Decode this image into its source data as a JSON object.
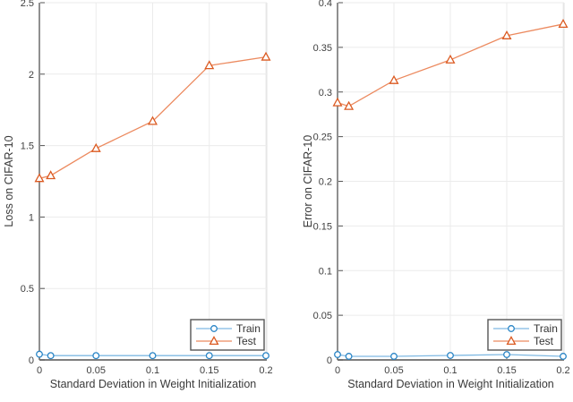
{
  "figure": {
    "background": "#ffffff"
  },
  "palette": {
    "grid": "#ebebeb",
    "box_edge": "#e2e2e2",
    "axis": "#6b6b6b",
    "tick": "#555555",
    "tick_text": "#3f3f3f",
    "label_text": "#3a3a3a",
    "legend_border": "#565656",
    "legend_bg": "#ffffff",
    "legend_text": "#333333"
  },
  "chart_data": [
    {
      "id": "loss",
      "type": "line",
      "title": "",
      "xlabel": "Standard Deviation in Weight Initialization",
      "ylabel": "Loss on CIFAR-10",
      "x": [
        0,
        0.01,
        0.05,
        0.1,
        0.15,
        0.2
      ],
      "xlim": [
        0,
        0.2
      ],
      "ylim": [
        0,
        2.5
      ],
      "xticks": [
        0,
        0.05,
        0.1,
        0.15,
        0.2
      ],
      "xtick_labels": [
        "0",
        "0.05",
        "0.1",
        "0.15",
        "0.2"
      ],
      "yticks": [
        0,
        0.5,
        1,
        1.5,
        2,
        2.5
      ],
      "ytick_labels": [
        "0",
        "0.5",
        "1",
        "1.5",
        "2",
        "2.5"
      ],
      "grid": true,
      "legend_position": "southeast",
      "legend_entries": [
        "Train",
        "Test"
      ],
      "series": [
        {
          "name": "Train",
          "marker": "circle",
          "line_color": "#7fb9e3",
          "marker_color": "#2a85c6",
          "values": [
            0.04,
            0.03,
            0.03,
            0.03,
            0.03,
            0.03
          ]
        },
        {
          "name": "Test",
          "marker": "triangle",
          "line_color": "#ec8a5f",
          "marker_color": "#db5a21",
          "values": [
            1.27,
            1.29,
            1.48,
            1.67,
            2.06,
            2.12
          ]
        }
      ]
    },
    {
      "id": "error",
      "type": "line",
      "title": "",
      "xlabel": "Standard Deviation in Weight Initialization",
      "ylabel": "Error on CIFAR-10",
      "x": [
        0,
        0.01,
        0.05,
        0.1,
        0.15,
        0.2
      ],
      "xlim": [
        0,
        0.2
      ],
      "ylim": [
        0,
        0.4
      ],
      "xticks": [
        0,
        0.05,
        0.1,
        0.15,
        0.2
      ],
      "xtick_labels": [
        "0",
        "0.05",
        "0.1",
        "0.15",
        "0.2"
      ],
      "yticks": [
        0,
        0.05,
        0.1,
        0.15,
        0.2,
        0.25,
        0.3,
        0.35,
        0.4
      ],
      "ytick_labels": [
        "0",
        "0.05",
        "0.1",
        "0.15",
        "0.2",
        "0.25",
        "0.3",
        "0.35",
        "0.4"
      ],
      "grid": true,
      "legend_position": "southeast",
      "legend_entries": [
        "Train",
        "Test"
      ],
      "series": [
        {
          "name": "Train",
          "marker": "circle",
          "line_color": "#7fb9e3",
          "marker_color": "#2a85c6",
          "values": [
            0.006,
            0.004,
            0.004,
            0.005,
            0.006,
            0.004
          ]
        },
        {
          "name": "Test",
          "marker": "triangle",
          "line_color": "#ec8a5f",
          "marker_color": "#db5a21",
          "values": [
            0.288,
            0.284,
            0.313,
            0.336,
            0.363,
            0.376
          ]
        }
      ]
    }
  ]
}
